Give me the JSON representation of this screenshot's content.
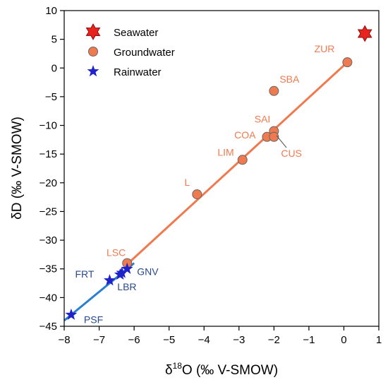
{
  "chart_data": {
    "type": "scatter",
    "title": "",
    "xlabel_prefix": "δ",
    "xlabel_sup": "18",
    "xlabel_suffix": "O (‰ V-SMOW)",
    "ylabel": "δD (‰ V-SMOW)",
    "xlim": [
      -8,
      1
    ],
    "ylim": [
      -45,
      10
    ],
    "x_ticks": [
      -8,
      -7,
      -6,
      -5,
      -4,
      -3,
      -2,
      -1,
      0,
      1
    ],
    "y_ticks": [
      -45,
      -40,
      -35,
      -30,
      -25,
      -20,
      -15,
      -10,
      -5,
      0,
      5,
      10
    ],
    "grid": false,
    "legend_position": "top-left",
    "legend": [
      {
        "label": "Seawater",
        "marker": "star6",
        "color": "#e8231e"
      },
      {
        "label": "Groundwater",
        "marker": "circle",
        "color": "#f07a4f"
      },
      {
        "label": "Rainwater",
        "marker": "star5",
        "color": "#1f22c8"
      }
    ],
    "series": [
      {
        "name": "Seawater",
        "marker": "star6",
        "color": "#e8231e",
        "points": [
          {
            "x": 0.6,
            "y": 6.0,
            "label": ""
          }
        ]
      },
      {
        "name": "Groundwater",
        "marker": "circle",
        "color": "#f07a4f",
        "label_color": "#f07a4f",
        "points": [
          {
            "x": 0.1,
            "y": 1.0,
            "label": "ZUR"
          },
          {
            "x": -2.0,
            "y": -4.0,
            "label": "SBA"
          },
          {
            "x": -2.0,
            "y": -11.0,
            "label": "SAI"
          },
          {
            "x": -2.2,
            "y": -12.0,
            "label": "COA"
          },
          {
            "x": -2.0,
            "y": -12.0,
            "label": "CUS"
          },
          {
            "x": -2.9,
            "y": -16.0,
            "label": "LIM"
          },
          {
            "x": -4.2,
            "y": -22.0,
            "label": "L"
          },
          {
            "x": -6.2,
            "y": -34.0,
            "label": "LSC"
          }
        ]
      },
      {
        "name": "Rainwater",
        "marker": "star5",
        "color": "#1f22c8",
        "label_color": "#2a4a8c",
        "points": [
          {
            "x": -6.2,
            "y": -35.0,
            "label": "GNV"
          },
          {
            "x": -6.35,
            "y": -35.7,
            "label": ""
          },
          {
            "x": -6.7,
            "y": -37.0,
            "label": "FRT"
          },
          {
            "x": -6.4,
            "y": -36.0,
            "label": "LBR"
          },
          {
            "x": -7.8,
            "y": -43.0,
            "label": "PSF"
          }
        ]
      }
    ],
    "lines": [
      {
        "name": "groundwater-regression",
        "color": "#f07a4f",
        "x1": -6.2,
        "y1": -34.2,
        "x2": 0.1,
        "y2": 1.0
      },
      {
        "name": "rainwater-regression",
        "color": "#2a7fcf",
        "x1": -8.0,
        "y1": -44.0,
        "x2": -6.0,
        "y2": -34.0
      }
    ]
  }
}
